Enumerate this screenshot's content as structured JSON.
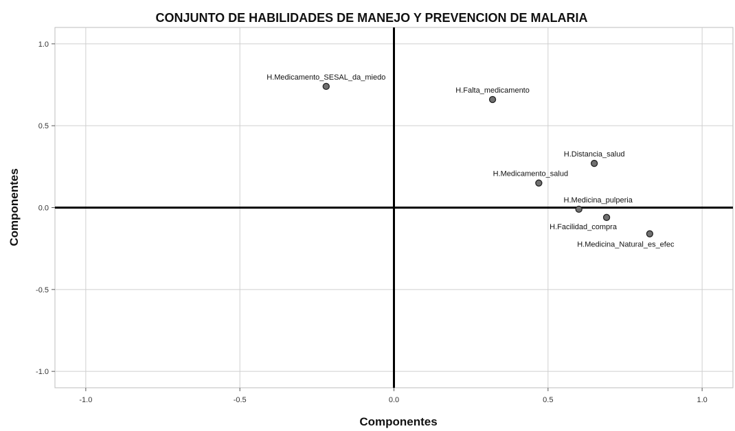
{
  "chart_data": {
    "type": "scatter",
    "title": "CONJUNTO DE  HABILIDADES DE MANEJO Y PREVENCION DE MALARIA",
    "xlabel": "Componentes",
    "ylabel": "Componentes",
    "xlim": [
      -1.1,
      1.1
    ],
    "ylim": [
      -1.1,
      1.1
    ],
    "xticks": [
      -1.0,
      -0.5,
      0.0,
      0.5,
      1.0
    ],
    "yticks": [
      -1.0,
      -0.5,
      0.0,
      0.5,
      1.0
    ],
    "xtick_labels": [
      "-1.0",
      "-0.5",
      "0.0",
      "0.5",
      "1.0"
    ],
    "ytick_labels": [
      "-1.0",
      "-0.5",
      "0.0",
      "0.5",
      "1.0"
    ],
    "grid": true,
    "points": [
      {
        "label": "H.Medicamento_SESAL_da_miedo",
        "x": -0.22,
        "y": 0.74
      },
      {
        "label": "H.Falta_medicamento",
        "x": 0.32,
        "y": 0.66
      },
      {
        "label": "H.Distancia_salud",
        "x": 0.65,
        "y": 0.27
      },
      {
        "label": "H.Medicamento_salud",
        "x": 0.47,
        "y": 0.15
      },
      {
        "label": "H.Medicina_pulperia",
        "x": 0.6,
        "y": -0.01
      },
      {
        "label": "H.Facilidad_compra",
        "x": 0.69,
        "y": -0.06
      },
      {
        "label": "H.Medicina_Natural_es_efec",
        "x": 0.83,
        "y": -0.16
      }
    ],
    "colors": {
      "point_fill": "#707070",
      "point_stroke": "#222222",
      "zero_line": "#000000",
      "grid": "#cfcfcf"
    }
  }
}
